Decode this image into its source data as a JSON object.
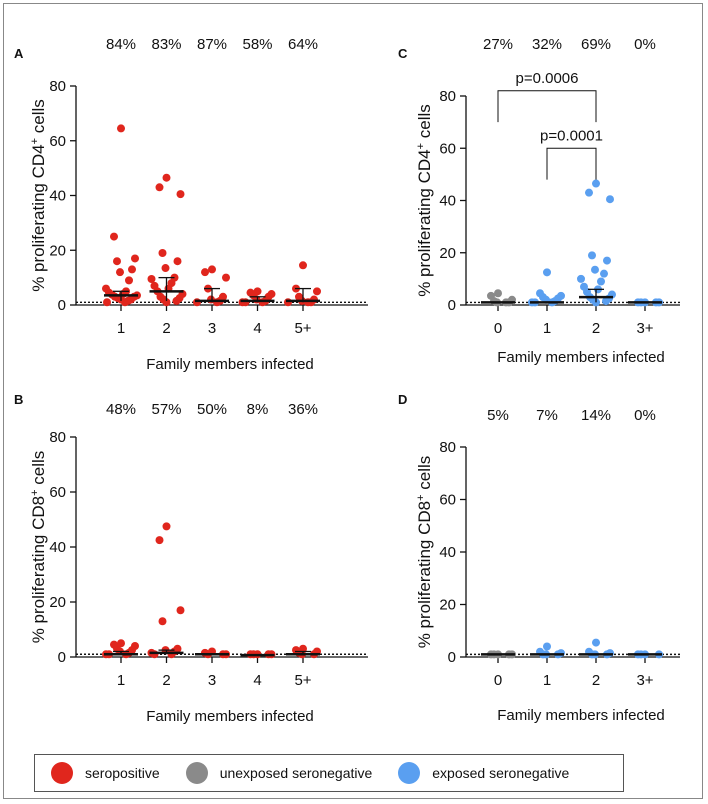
{
  "colors": {
    "seropositive": "#e0261d",
    "unexposed_seronegative": "#8a8a8a",
    "exposed_seronegative": "#5a9ff0",
    "axis": "#111111"
  },
  "chart_data": [
    {
      "panel": "A",
      "type": "scatter",
      "ylabel": "% proliferating CD4+ cells",
      "ylabel_main": "% proliferating CD4",
      "ylabel_sup": "+",
      "ylabel_tail": " cells",
      "xlabel": "Family members infected",
      "ylim": [
        0,
        80
      ],
      "yticks": [
        0,
        20,
        40,
        60,
        80
      ],
      "categories": [
        "1",
        "2",
        "3",
        "4",
        "5+"
      ],
      "percent_labels": [
        "84%",
        "83%",
        "87%",
        "58%",
        "64%"
      ],
      "color_key": "seropositive",
      "threshold": 1,
      "points": [
        [
          64.5,
          25,
          17,
          16,
          13,
          12,
          9,
          6,
          5,
          4.5,
          4,
          3.8,
          3.5,
          3,
          3,
          2.5,
          2,
          2,
          1.5,
          1,
          1
        ],
        [
          46.5,
          43,
          40.5,
          19,
          16,
          13.5,
          10,
          9.5,
          8,
          7,
          6,
          5,
          4,
          3,
          2.5,
          2,
          1.5,
          1
        ],
        [
          13,
          12,
          10,
          6,
          3,
          2,
          1.5,
          1,
          1
        ],
        [
          5,
          4.5,
          4,
          3.5,
          3,
          2,
          1.5,
          1,
          1,
          1
        ],
        [
          14.5,
          6,
          5,
          3,
          2,
          1.5,
          1,
          1,
          1
        ]
      ],
      "medians": [
        3.5,
        5,
        1.5,
        1.5,
        1.5
      ],
      "iqr": [
        [
          1.5,
          5
        ],
        [
          1.5,
          10
        ],
        [
          1,
          6
        ],
        [
          1,
          3
        ],
        [
          1,
          6
        ]
      ]
    },
    {
      "panel": "B",
      "type": "scatter",
      "ylabel": "% proliferating CD8+ cells",
      "ylabel_main": "% proliferating CD8",
      "ylabel_sup": "+",
      "ylabel_tail": " cells",
      "xlabel": "Family members infected",
      "ylim": [
        0,
        80
      ],
      "yticks": [
        0,
        20,
        40,
        60,
        80
      ],
      "categories": [
        "1",
        "2",
        "3",
        "4",
        "5+"
      ],
      "percent_labels": [
        "48%",
        "57%",
        "50%",
        "8%",
        "36%"
      ],
      "color_key": "seropositive",
      "threshold": 1,
      "points": [
        [
          5,
          4.5,
          4,
          3,
          2.5,
          2,
          1.5,
          1,
          1,
          1
        ],
        [
          47.5,
          42.5,
          17,
          13,
          3,
          2.5,
          2,
          1.5,
          1,
          1
        ],
        [
          2,
          1.5,
          1,
          1,
          1
        ],
        [
          1,
          1,
          1,
          1,
          1
        ],
        [
          3,
          2.5,
          2,
          1.5,
          1,
          1
        ]
      ],
      "medians": [
        1,
        1.5,
        1,
        0.7,
        1
      ],
      "iqr": [
        [
          1,
          2
        ],
        [
          1,
          2.5
        ],
        [
          1,
          1
        ],
        [
          0.7,
          0.7
        ],
        [
          1,
          2
        ]
      ]
    },
    {
      "panel": "C",
      "type": "scatter",
      "ylabel": "% proliferating CD4+ cells",
      "ylabel_main": "% proliferating CD4",
      "ylabel_sup": "+",
      "ylabel_tail": " cells",
      "xlabel": "Family members infected",
      "ylim": [
        0,
        80
      ],
      "yticks": [
        0,
        20,
        40,
        60,
        80
      ],
      "categories": [
        "0",
        "1",
        "2",
        "3+"
      ],
      "percent_labels": [
        "27%",
        "32%",
        "69%",
        "0%"
      ],
      "point_colors": [
        "unexposed_seronegative",
        "exposed_seronegative",
        "exposed_seronegative",
        "exposed_seronegative"
      ],
      "threshold": 1,
      "points": [
        [
          4.5,
          3.5,
          2,
          1.5,
          1,
          1,
          1
        ],
        [
          12.5,
          4.5,
          3.5,
          3,
          2.5,
          2,
          1.5,
          1,
          1,
          1
        ],
        [
          46.5,
          43,
          40.5,
          19,
          17,
          13.5,
          12,
          10,
          9,
          7,
          6,
          5,
          4,
          3,
          2.5,
          2,
          1.5,
          1
        ],
        [
          1,
          1,
          1,
          1,
          1
        ]
      ],
      "medians": [
        1,
        1,
        3,
        1
      ],
      "iqr": [
        [
          1,
          1
        ],
        [
          1,
          1
        ],
        [
          1,
          6
        ],
        [
          1,
          1
        ]
      ],
      "significance": [
        {
          "from": "0",
          "to": "2",
          "label": "p=0.0006",
          "y": 82
        },
        {
          "from": "1",
          "to": "2",
          "label": "p=0.0001",
          "y": 60
        }
      ]
    },
    {
      "panel": "D",
      "type": "scatter",
      "ylabel": "% proliferating CD8+ cells",
      "ylabel_main": "% proliferating CD8",
      "ylabel_sup": "+",
      "ylabel_tail": " cells",
      "xlabel": "Family members infected",
      "ylim": [
        0,
        80
      ],
      "yticks": [
        0,
        20,
        40,
        60,
        80
      ],
      "categories": [
        "0",
        "1",
        "2",
        "3+"
      ],
      "percent_labels": [
        "5%",
        "7%",
        "14%",
        "0%"
      ],
      "point_colors": [
        "unexposed_seronegative",
        "exposed_seronegative",
        "exposed_seronegative",
        "exposed_seronegative"
      ],
      "threshold": 1,
      "points": [
        [
          1,
          1,
          1,
          1,
          1
        ],
        [
          4,
          2,
          1.5,
          1,
          1,
          1
        ],
        [
          5.5,
          2,
          1.5,
          1,
          1,
          1
        ],
        [
          1,
          1,
          1,
          1
        ]
      ],
      "medians": [
        1,
        1,
        1,
        1
      ],
      "iqr": [
        [
          1,
          1
        ],
        [
          1,
          1
        ],
        [
          1,
          1
        ],
        [
          1,
          1
        ]
      ]
    }
  ],
  "legend": {
    "items": [
      {
        "label": "seropositive",
        "color_key": "seropositive"
      },
      {
        "label": "unexposed seronegative",
        "color_key": "unexposed_seronegative"
      },
      {
        "label": "exposed seronegative",
        "color_key": "exposed_seronegative"
      }
    ]
  }
}
